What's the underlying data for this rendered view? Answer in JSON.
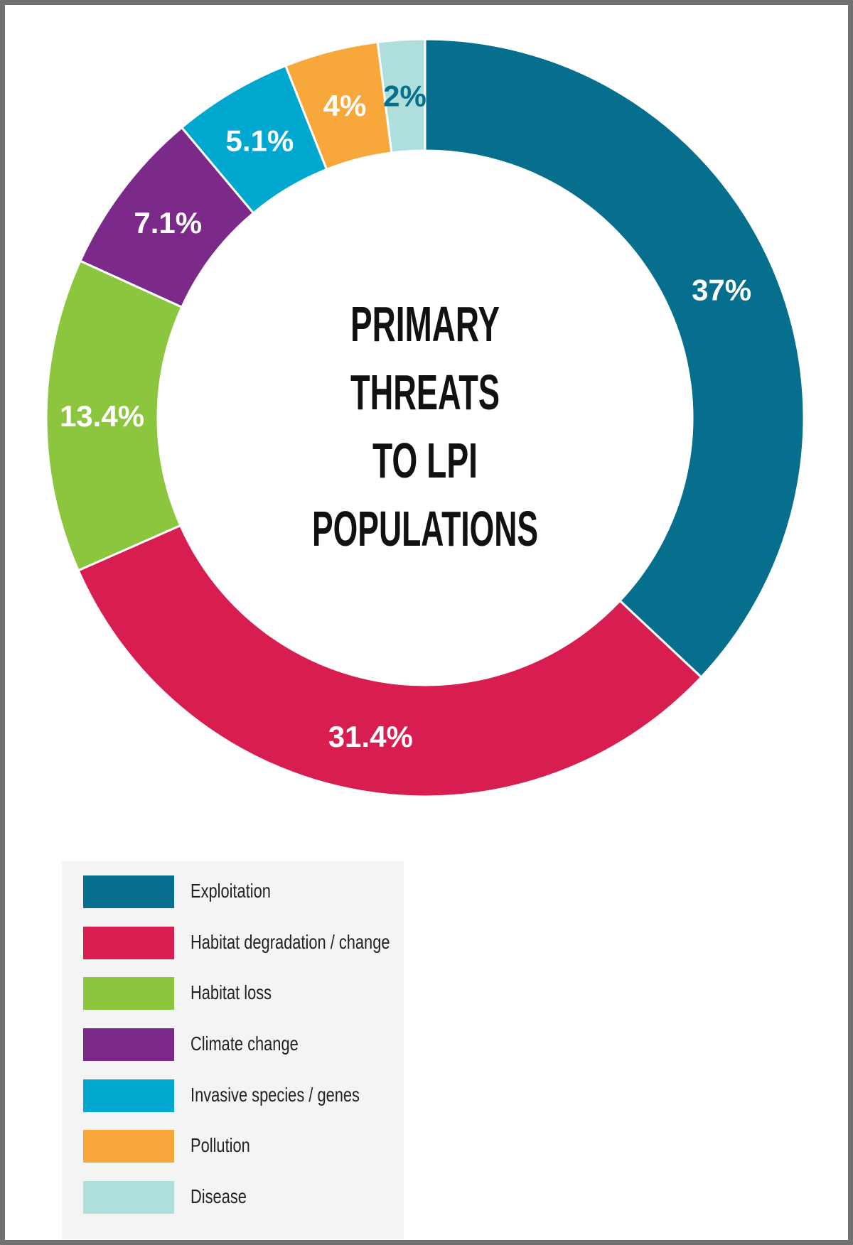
{
  "chart_data": {
    "type": "pie",
    "style": "donut",
    "title_lines": [
      "PRIMARY",
      "THREATS",
      "TO LPI",
      "POPULATIONS"
    ],
    "slices": [
      {
        "name": "Exploitation",
        "value": 37,
        "label": "37%",
        "color": "#066f8e",
        "label_color": "#ffffff"
      },
      {
        "name": "Habitat degradation / change",
        "value": 31.4,
        "label": "31.4%",
        "color": "#d81d50",
        "label_color": "#ffffff"
      },
      {
        "name": "Habitat loss",
        "value": 13.4,
        "label": "13.4%",
        "color": "#8cc63f",
        "label_color": "#ffffff"
      },
      {
        "name": "Climate change",
        "value": 7.1,
        "label": "7.1%",
        "color": "#7b2a8a",
        "label_color": "#ffffff"
      },
      {
        "name": "Invasive species / genes",
        "value": 5.1,
        "label": "5.1%",
        "color": "#00a8d0",
        "label_color": "#ffffff"
      },
      {
        "name": "Pollution",
        "value": 4,
        "label": "4%",
        "color": "#f8a83b",
        "label_color": "#ffffff"
      },
      {
        "name": "Disease",
        "value": 2,
        "label": "2%",
        "color": "#aedfdc",
        "label_color": "#066f8e"
      }
    ],
    "legend_position": "bottom-left"
  }
}
